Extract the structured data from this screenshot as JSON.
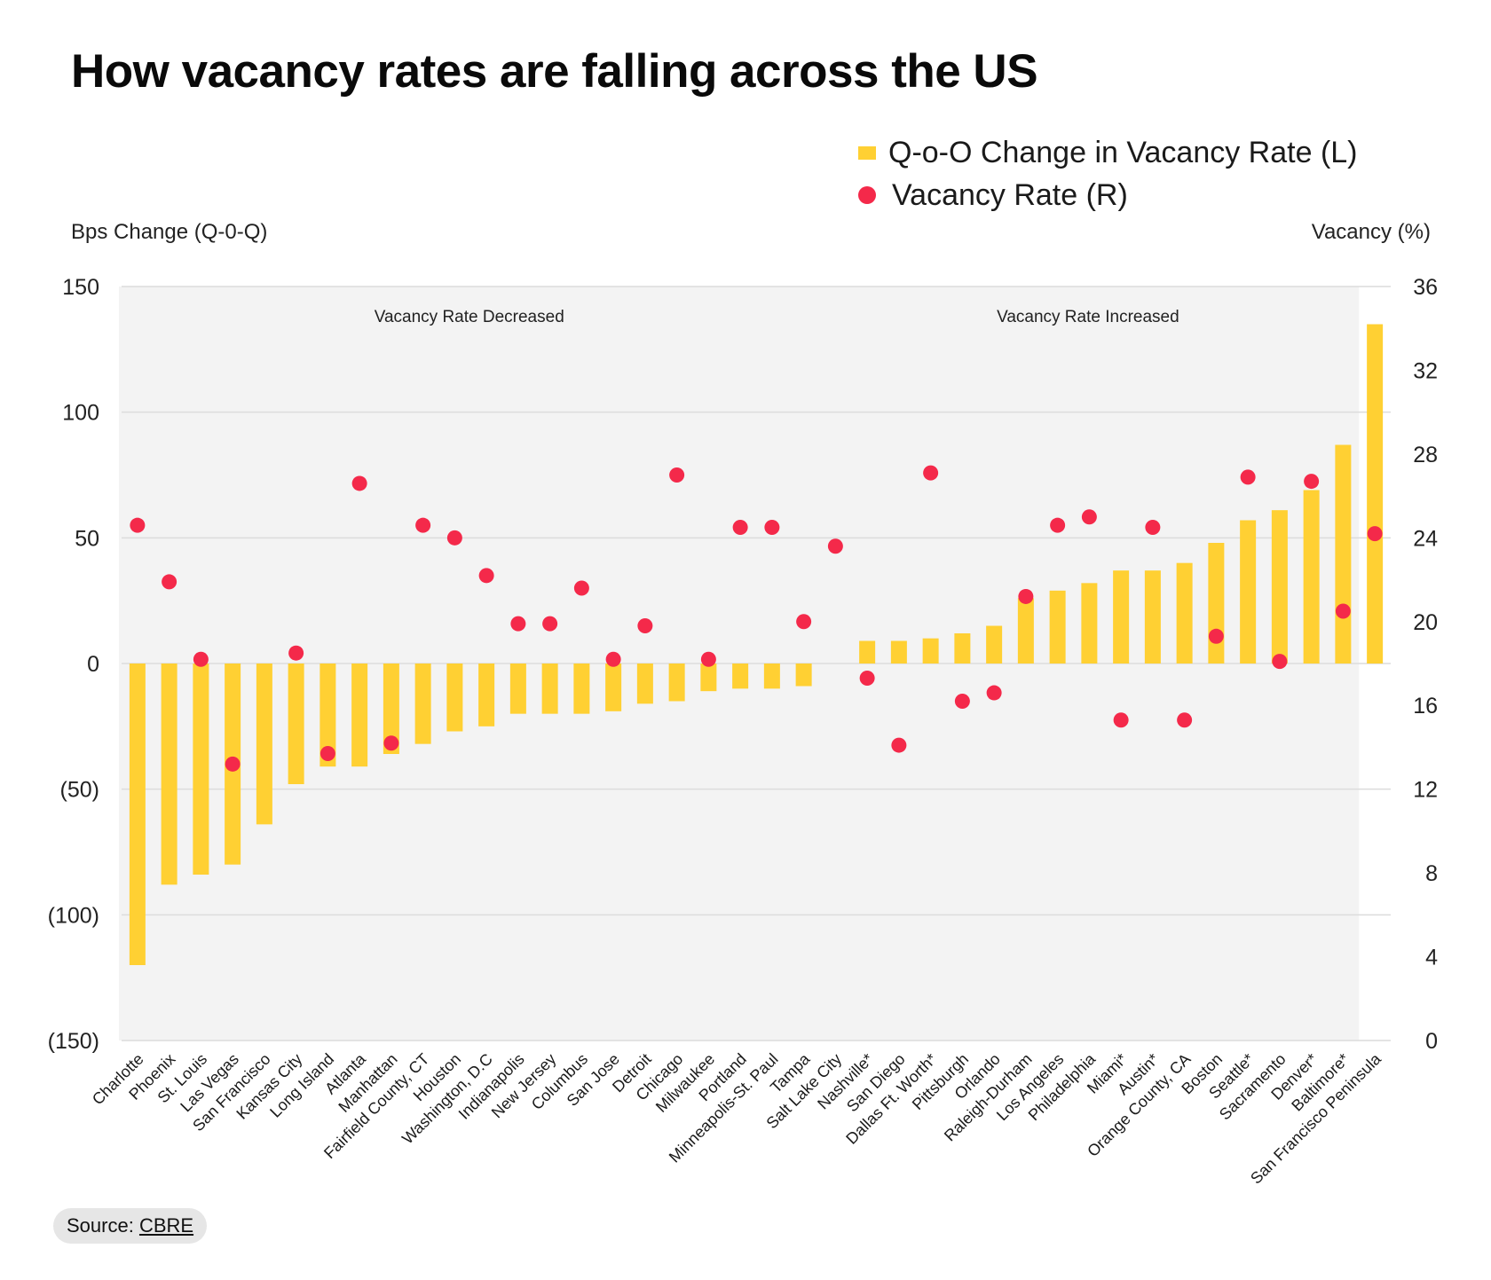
{
  "title": "How vacancy rates are falling across the US",
  "legend": {
    "bar_label": "Q-o-O Change in Vacancy Rate (L)",
    "dot_label": "Vacancy Rate (R)"
  },
  "source": {
    "label": "Source:",
    "link_text": "CBRE"
  },
  "colors": {
    "bar": "#ffd033",
    "dot": "#f4294a",
    "panel": "#f3f3f3",
    "grid": "#dcdcdc"
  },
  "chart_data": {
    "type": "bar",
    "title": "How vacancy rates are falling across the US",
    "ylabel": "Bps Change (Q-0-Q)",
    "y2label": "Vacancy (%)",
    "ylim": [
      -150,
      150
    ],
    "y2lim": [
      0,
      36
    ],
    "yticks": [
      150,
      100,
      50,
      0,
      -50,
      -100,
      -150
    ],
    "ytick_labels": [
      "150",
      "100",
      "50",
      "0",
      "(50)",
      "(100)",
      "(150)"
    ],
    "y2ticks": [
      36,
      32,
      28,
      24,
      20,
      16,
      12,
      8,
      4,
      0
    ],
    "y2tick_labels": [
      "36",
      "32",
      "28",
      "24",
      "20",
      "16",
      "12",
      "8",
      "4",
      "0"
    ],
    "regions": [
      {
        "label": "Vacancy Rate Decreased",
        "start": 0,
        "end": 21
      },
      {
        "label": "Vacancy Rate Increased",
        "start": 22,
        "end": 38
      }
    ],
    "categories": [
      "Charlotte",
      "Phoenix",
      "St. Louis",
      "Las Vegas",
      "San Francisco",
      "Kansas City",
      "Long Island",
      "Atlanta",
      "Manhattan",
      "Fairfield County, CT",
      "Houston",
      "Washington, D.C",
      "Indianapolis",
      "New Jersey",
      "Columbus",
      "San Jose",
      "Detroit",
      "Chicago",
      "Milwaukee",
      "Portland",
      "Minneapolis-St. Paul",
      "Tampa",
      "Salt Lake City",
      "Nashville*",
      "San Diego",
      "Dallas Ft. Worth*",
      "Pittsburgh",
      "Orlando",
      "Raleigh-Durham",
      "Los Angeles",
      "Philadelphia",
      "Miami*",
      "Austin*",
      "Orange County, CA",
      "Boston",
      "Seattle*",
      "Sacramento",
      "Denver*",
      "Baltimore*",
      "San Francisco Peninsula"
    ],
    "series": [
      {
        "name": "Q-o-O Change in Vacancy Rate (L)",
        "type": "bar",
        "axis": "left",
        "values": [
          -120,
          -88,
          -84,
          -80,
          -64,
          -48,
          -41,
          -41,
          -36,
          -32,
          -27,
          -25,
          -20,
          -20,
          -20,
          -19,
          -16,
          -15,
          -11,
          -10,
          -10,
          -9,
          null,
          9,
          9,
          10,
          12,
          15,
          26,
          29,
          32,
          37,
          37,
          40,
          48,
          57,
          61,
          69,
          87,
          135
        ]
      },
      {
        "name": "Vacancy Rate (R)",
        "type": "scatter",
        "axis": "right",
        "values": [
          24.6,
          21.9,
          18.2,
          13.2,
          null,
          18.5,
          13.7,
          26.6,
          14.2,
          24.6,
          24.0,
          22.2,
          19.9,
          19.9,
          21.6,
          18.2,
          19.8,
          27.0,
          18.2,
          24.5,
          24.5,
          20.0,
          23.6,
          17.3,
          14.1,
          27.1,
          16.2,
          16.6,
          21.2,
          24.6,
          25.0,
          15.3,
          24.5,
          15.3,
          19.3,
          26.9,
          18.1,
          26.7,
          20.5,
          24.2
        ]
      }
    ]
  }
}
